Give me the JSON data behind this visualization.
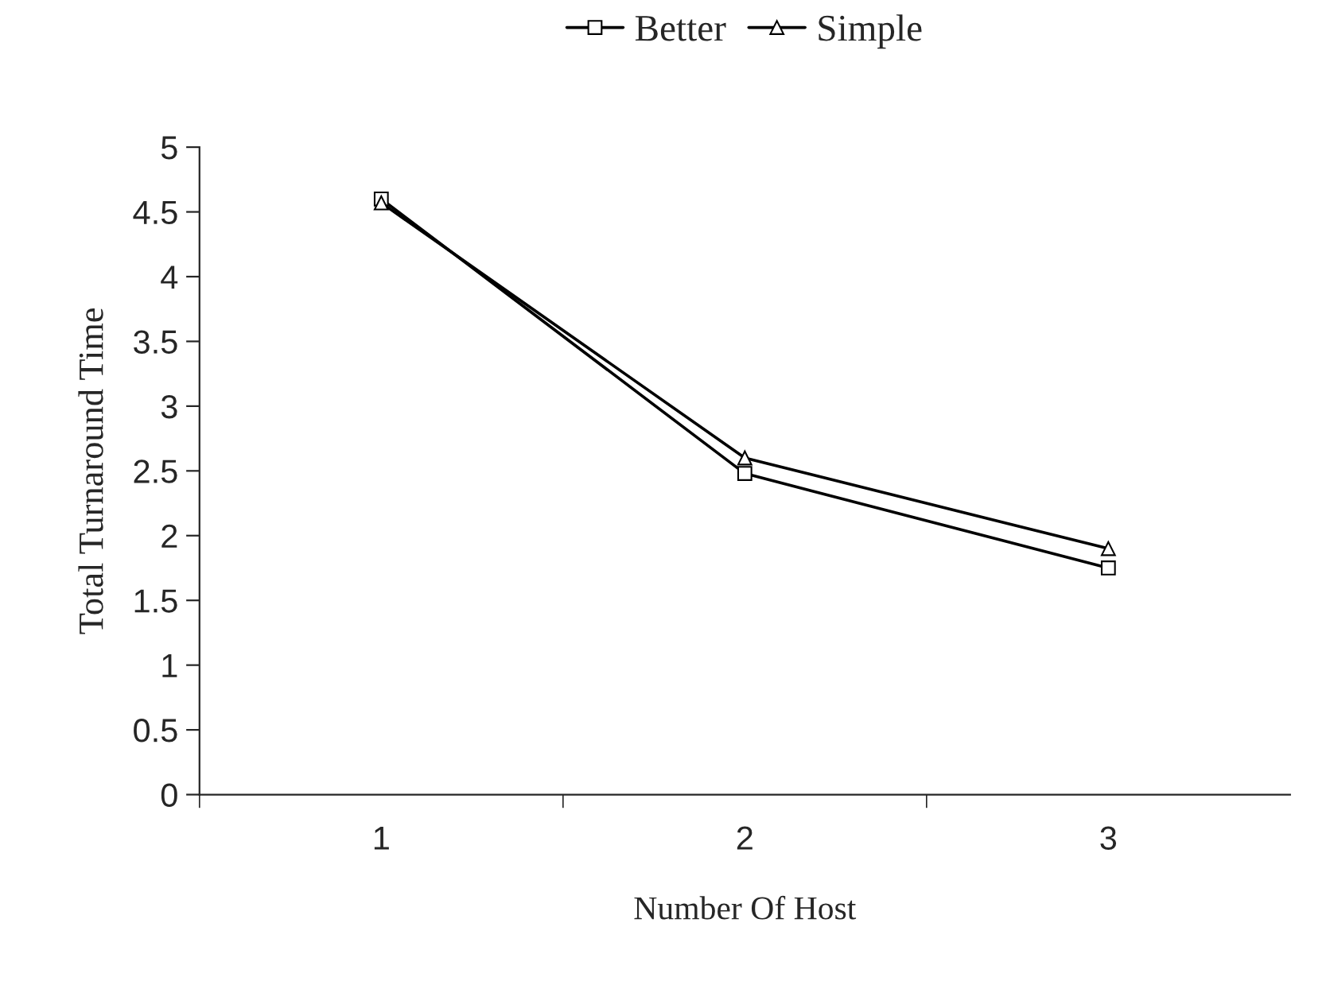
{
  "chart_data": {
    "type": "line",
    "xlabel": "Number Of Host",
    "ylabel": "Total Turnaround Time",
    "categories": [
      "1",
      "2",
      "3"
    ],
    "series": [
      {
        "name": "Better",
        "color": "#000000",
        "values": [
          4.6,
          2.48,
          1.75
        ],
        "marker": "square"
      },
      {
        "name": "Simple",
        "color": "#000000",
        "values": [
          4.57,
          2.6,
          1.9
        ],
        "marker": "triangle"
      }
    ],
    "ylim": [
      0,
      5
    ],
    "yticks": [
      0,
      0.5,
      1,
      1.5,
      2,
      2.5,
      3,
      3.5,
      4,
      4.5,
      5
    ],
    "grid": false,
    "legend": "top",
    "line_style": "solid"
  }
}
